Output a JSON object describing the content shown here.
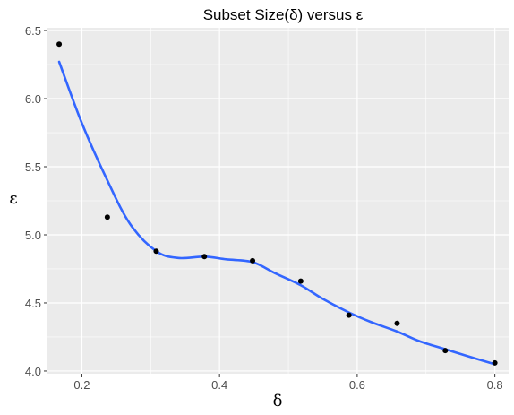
{
  "chart_data": {
    "type": "scatter",
    "title": "Subset Size(δ) versus ε",
    "xlabel": "δ",
    "ylabel": "ε",
    "xlim": [
      0.15,
      0.82
    ],
    "ylim": [
      3.98,
      6.52
    ],
    "x_ticks": [
      0.2,
      0.4,
      0.6,
      0.8
    ],
    "x_tick_labels": [
      "0.2",
      "0.4",
      "0.6",
      "0.8"
    ],
    "y_ticks": [
      4.0,
      4.5,
      5.0,
      5.5,
      6.0,
      6.5
    ],
    "y_tick_labels": [
      "4.0",
      "4.5",
      "5.0",
      "5.5",
      "6.0",
      "6.5"
    ],
    "grid": true,
    "background": "#ebebeb",
    "grid_color": "#ffffff",
    "series": [
      {
        "kind": "points",
        "color": "#000000",
        "x": [
          0.167,
          0.237,
          0.308,
          0.378,
          0.448,
          0.518,
          0.588,
          0.658,
          0.728,
          0.8
        ],
        "y": [
          6.4,
          5.13,
          4.88,
          4.84,
          4.81,
          4.66,
          4.41,
          4.35,
          4.15,
          4.06
        ]
      },
      {
        "kind": "smooth",
        "color": "#3366ff",
        "x": [
          0.167,
          0.2,
          0.237,
          0.27,
          0.308,
          0.34,
          0.378,
          0.41,
          0.448,
          0.48,
          0.518,
          0.55,
          0.588,
          0.62,
          0.658,
          0.69,
          0.728,
          0.76,
          0.8
        ],
        "y": [
          6.27,
          5.82,
          5.4,
          5.08,
          4.88,
          4.83,
          4.84,
          4.82,
          4.8,
          4.72,
          4.63,
          4.53,
          4.43,
          4.36,
          4.29,
          4.22,
          4.16,
          4.11,
          4.05
        ]
      }
    ]
  }
}
